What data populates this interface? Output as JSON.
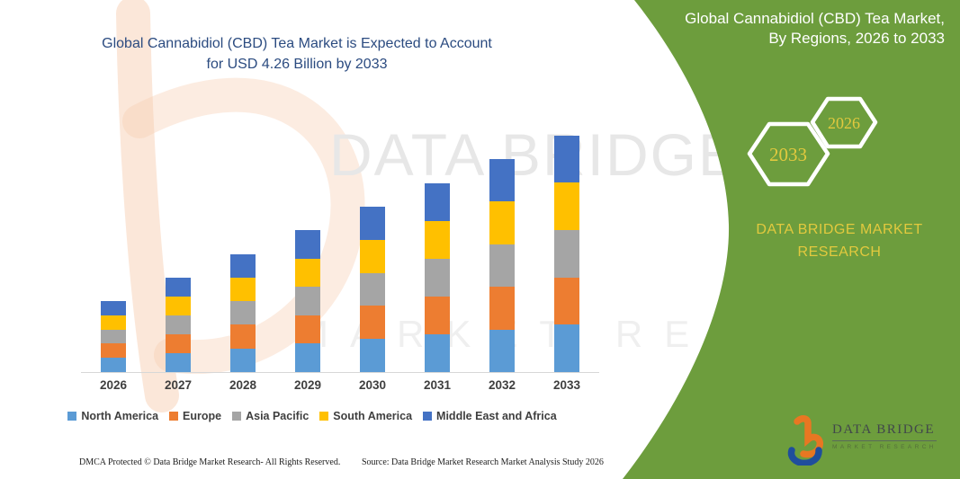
{
  "colors": {
    "panel_green": "#6d9d3d",
    "gold_text": "#e2c93e",
    "title_navy": "#2b4b80",
    "axis_gray": "#d7d7d7",
    "label_gray": "#3f3f3f",
    "logo_orange": "#e87722",
    "logo_blue": "#1f4e9c"
  },
  "left_title": {
    "line1": "Global Cannabidiol (CBD) Tea Market is Expected to Account",
    "line2": "for USD 4.26 Billion by 2033"
  },
  "right_panel": {
    "title_line1": "Global Cannabidiol (CBD) Tea Market,",
    "title_line2": "By Regions, 2026 to 2033",
    "hex_large_label": "2033",
    "hex_small_label": "2026",
    "brand_line1": "DATA BRIDGE MARKET",
    "brand_line2": "RESEARCH"
  },
  "logo": {
    "name_text": "DATA BRIDGE",
    "sub_text": "MARKET RESEARCH"
  },
  "watermark": {
    "big_text": "DATA BRIDGE",
    "sub_text": "MARKET RESEARCH"
  },
  "footer": {
    "left": "DMCA Protected © Data Bridge Market Research-  All Rights Reserved.",
    "right": "Source: Data Bridge Market Research  Market Analysis Study 2026"
  },
  "chart_data": {
    "type": "bar",
    "stacked": true,
    "title": "Global Cannabidiol (CBD) Tea Market is Expected to Account for USD 4.26 Billion by 2033",
    "unit": "USD Billion",
    "categories": [
      "2026",
      "2027",
      "2028",
      "2029",
      "2030",
      "2031",
      "2032",
      "2033"
    ],
    "series": [
      {
        "name": "North America",
        "color": "#5b9bd5",
        "values": [
          0.256,
          0.342,
          0.426,
          0.512,
          0.596,
          0.682,
          0.768,
          0.852
        ]
      },
      {
        "name": "Europe",
        "color": "#ed7d31",
        "values": [
          0.256,
          0.342,
          0.426,
          0.512,
          0.596,
          0.682,
          0.768,
          0.852
        ]
      },
      {
        "name": "Asia Pacific",
        "color": "#a5a5a5",
        "values": [
          0.256,
          0.342,
          0.426,
          0.512,
          0.596,
          0.682,
          0.768,
          0.852
        ]
      },
      {
        "name": "South America",
        "color": "#ffc000",
        "values": [
          0.256,
          0.342,
          0.426,
          0.512,
          0.596,
          0.682,
          0.768,
          0.852
        ]
      },
      {
        "name": "Middle East and Africa",
        "color": "#4472c4",
        "values": [
          0.256,
          0.342,
          0.426,
          0.512,
          0.596,
          0.682,
          0.768,
          0.852
        ]
      }
    ],
    "totals": [
      1.28,
      1.71,
      2.13,
      2.56,
      2.98,
      3.41,
      3.84,
      4.26
    ],
    "ylim": [
      0,
      4.5
    ],
    "gridlines": false,
    "axis_labels_shown": false,
    "legend_position": "bottom"
  }
}
